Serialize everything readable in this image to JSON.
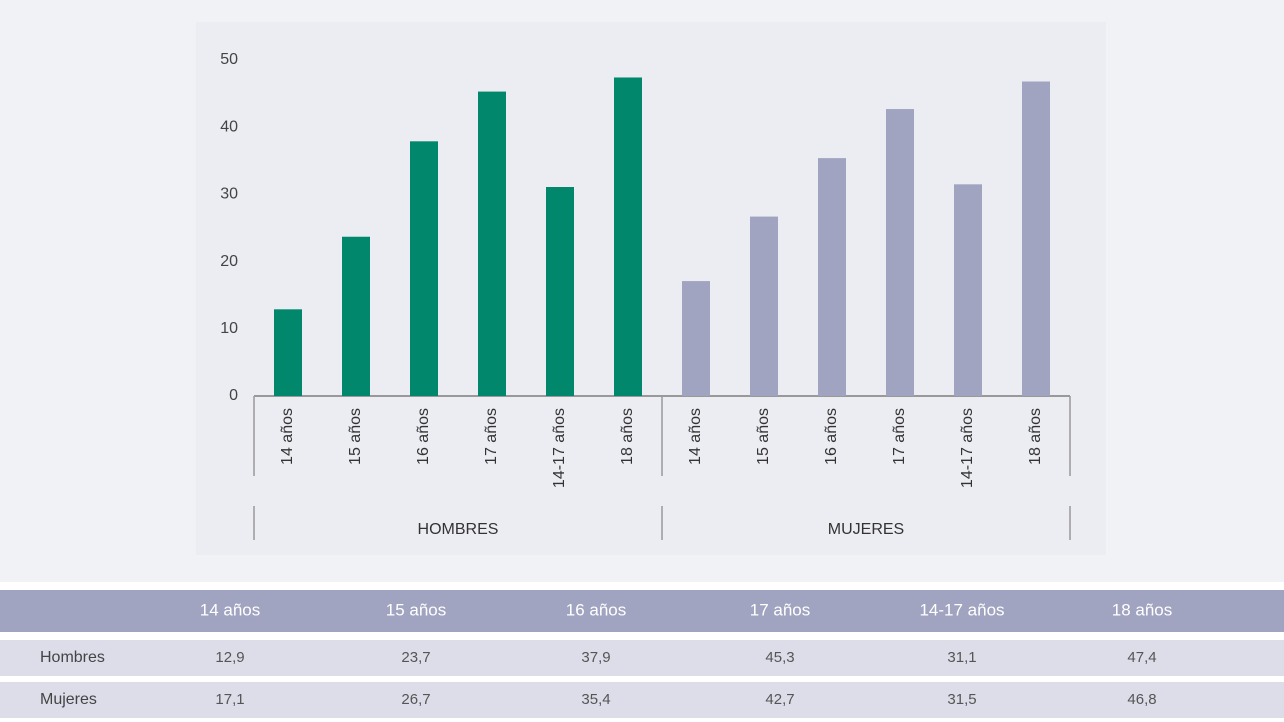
{
  "chart_data": {
    "type": "bar",
    "categories": [
      "14 años",
      "15 años",
      "16 años",
      "17 años",
      "14-17 años",
      "18 años"
    ],
    "groups": [
      "HOMBRES",
      "MUJERES"
    ],
    "series": [
      {
        "name": "Hombres",
        "color": "#00876c",
        "values": [
          12.9,
          23.7,
          37.9,
          45.3,
          31.1,
          47.4
        ],
        "value_labels": [
          "12,9",
          "23,7",
          "37,9",
          "45,3",
          "31,1",
          "47,4"
        ]
      },
      {
        "name": "Mujeres",
        "color": "#a0a4c0",
        "values": [
          17.1,
          26.7,
          35.4,
          42.7,
          31.5,
          46.8
        ],
        "value_labels": [
          "17,1",
          "26,7",
          "35,4",
          "42,7",
          "31,5",
          "46,8"
        ]
      }
    ],
    "ylim": [
      0,
      50
    ],
    "yticks": [
      0,
      10,
      20,
      30,
      40,
      50
    ]
  }
}
